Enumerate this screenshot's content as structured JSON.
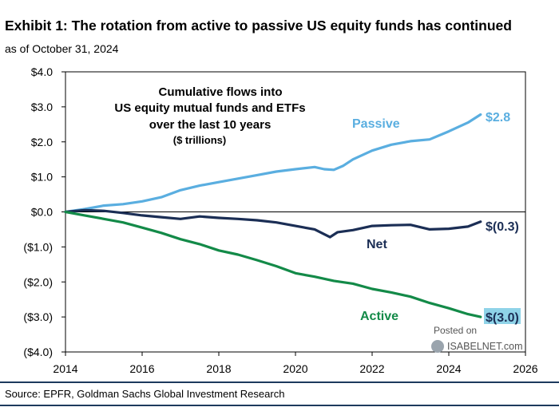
{
  "title": "Exhibit 1: The rotation from active to passive US equity funds has continued",
  "subtitle": "as of October 31, 2024",
  "source": "Source: EPFR, Goldman Sachs Global Investment Research",
  "watermark": {
    "line1": "Posted on",
    "line2": "ISABELNET.com"
  },
  "colors": {
    "passive": "#5aaee0",
    "net": "#1b2e55",
    "active": "#138a48",
    "active_highlight": "#8fd3e8",
    "rule": "#1d3a5e"
  },
  "chart_data": {
    "type": "line",
    "annotation": [
      "Cumulative flows into",
      "US equity mutual funds and ETFs",
      "over the last 10 years",
      "($ trillions)"
    ],
    "xlim": [
      2014,
      2026
    ],
    "ylim": [
      -4,
      4
    ],
    "x_ticks": [
      2014,
      2016,
      2018,
      2020,
      2022,
      2024,
      2026
    ],
    "x_tick_labels": [
      "2014",
      "2016",
      "2018",
      "2020",
      "2022",
      "2024",
      "2026"
    ],
    "y_ticks": [
      4,
      3,
      2,
      1,
      0,
      -1,
      -2,
      -3,
      -4
    ],
    "y_tick_labels": [
      "$4.0",
      "$3.0",
      "$2.0",
      "$1.0",
      "$0.0",
      "($1.0)",
      "($2.0)",
      "($3.0)",
      "($4.0)"
    ],
    "series": [
      {
        "name": "Passive",
        "end_label": "$2.8",
        "x": [
          2014.0,
          2014.5,
          2015.0,
          2015.5,
          2016.0,
          2016.5,
          2017.0,
          2017.5,
          2018.0,
          2018.5,
          2019.0,
          2019.5,
          2020.0,
          2020.5,
          2020.75,
          2021.0,
          2021.25,
          2021.5,
          2022.0,
          2022.5,
          2023.0,
          2023.5,
          2024.0,
          2024.5,
          2024.83
        ],
        "values": [
          0.0,
          0.08,
          0.18,
          0.22,
          0.3,
          0.42,
          0.62,
          0.75,
          0.85,
          0.95,
          1.05,
          1.15,
          1.22,
          1.28,
          1.22,
          1.2,
          1.32,
          1.5,
          1.75,
          1.92,
          2.02,
          2.07,
          2.3,
          2.55,
          2.78
        ]
      },
      {
        "name": "Net",
        "end_label": "$(0.3)",
        "x": [
          2014.0,
          2014.5,
          2015.0,
          2015.5,
          2016.0,
          2016.5,
          2017.0,
          2017.5,
          2018.0,
          2018.5,
          2019.0,
          2019.5,
          2020.0,
          2020.5,
          2020.9,
          2021.1,
          2021.5,
          2022.0,
          2022.5,
          2023.0,
          2023.5,
          2024.0,
          2024.5,
          2024.83
        ],
        "values": [
          0.0,
          0.05,
          0.03,
          -0.03,
          -0.1,
          -0.15,
          -0.2,
          -0.13,
          -0.17,
          -0.2,
          -0.24,
          -0.3,
          -0.4,
          -0.5,
          -0.72,
          -0.58,
          -0.52,
          -0.4,
          -0.38,
          -0.37,
          -0.5,
          -0.48,
          -0.42,
          -0.28
        ]
      },
      {
        "name": "Active",
        "end_label": "$(3.0)",
        "x": [
          2014.0,
          2014.5,
          2015.0,
          2015.5,
          2016.0,
          2016.5,
          2017.0,
          2017.5,
          2018.0,
          2018.5,
          2019.0,
          2019.5,
          2020.0,
          2020.5,
          2021.0,
          2021.5,
          2022.0,
          2022.5,
          2023.0,
          2023.5,
          2024.0,
          2024.5,
          2024.83
        ],
        "values": [
          0.0,
          -0.1,
          -0.2,
          -0.3,
          -0.45,
          -0.6,
          -0.78,
          -0.92,
          -1.1,
          -1.22,
          -1.38,
          -1.55,
          -1.75,
          -1.85,
          -1.97,
          -2.05,
          -2.2,
          -2.3,
          -2.42,
          -2.6,
          -2.75,
          -2.92,
          -3.0
        ]
      }
    ]
  }
}
